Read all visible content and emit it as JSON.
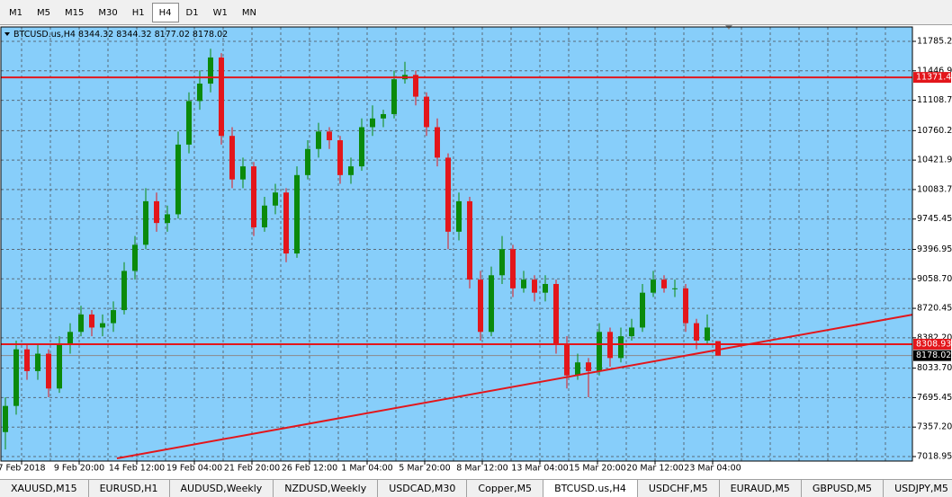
{
  "toolbar": {
    "timeframes": [
      "M1",
      "M5",
      "M15",
      "M30",
      "H1",
      "H4",
      "D1",
      "W1",
      "MN"
    ],
    "active": 5
  },
  "chart_data": {
    "type": "candlestick",
    "symbol": "BTCUSD.us,H4",
    "candles": [
      [
        7300,
        7700,
        7100,
        7600
      ],
      [
        7600,
        8350,
        7500,
        8250
      ],
      [
        8250,
        8300,
        7900,
        8000
      ],
      [
        8000,
        8300,
        7900,
        8200
      ],
      [
        8200,
        8250,
        7700,
        7800
      ],
      [
        7800,
        8400,
        7750,
        8300
      ],
      [
        8300,
        8550,
        8200,
        8450
      ],
      [
        8450,
        8750,
        8400,
        8650
      ],
      [
        8650,
        8700,
        8400,
        8500
      ],
      [
        8500,
        8650,
        8400,
        8550
      ],
      [
        8550,
        8800,
        8450,
        8700
      ],
      [
        8700,
        9250,
        8650,
        9150
      ],
      [
        9150,
        9550,
        9050,
        9450
      ],
      [
        9450,
        10100,
        9400,
        9950
      ],
      [
        9950,
        10050,
        9600,
        9700
      ],
      [
        9700,
        9900,
        9600,
        9800
      ],
      [
        9800,
        10750,
        9750,
        10600
      ],
      [
        10600,
        11200,
        10500,
        11100
      ],
      [
        11100,
        11450,
        11000,
        11300
      ],
      [
        11300,
        11700,
        11200,
        11600
      ],
      [
        11600,
        11650,
        10600,
        10700
      ],
      [
        10700,
        10800,
        10100,
        10200
      ],
      [
        10200,
        10450,
        10100,
        10350
      ],
      [
        10350,
        10400,
        9550,
        9650
      ],
      [
        9650,
        10000,
        9600,
        9900
      ],
      [
        9900,
        10150,
        9800,
        10050
      ],
      [
        10050,
        10100,
        9250,
        9350
      ],
      [
        9350,
        10350,
        9300,
        10250
      ],
      [
        10250,
        10650,
        10200,
        10550
      ],
      [
        10550,
        10850,
        10450,
        10750
      ],
      [
        10750,
        10800,
        10550,
        10650
      ],
      [
        10650,
        10700,
        10150,
        10250
      ],
      [
        10250,
        10450,
        10150,
        10350
      ],
      [
        10350,
        10900,
        10300,
        10800
      ],
      [
        10800,
        11050,
        10700,
        10900
      ],
      [
        10900,
        11000,
        10800,
        10950
      ],
      [
        10950,
        11450,
        10900,
        11350
      ],
      [
        11350,
        11550,
        11300,
        11400
      ],
      [
        11400,
        11450,
        11050,
        11150
      ],
      [
        11150,
        11200,
        10700,
        10800
      ],
      [
        10800,
        10900,
        10350,
        10450
      ],
      [
        10450,
        10500,
        9400,
        9600
      ],
      [
        9600,
        10050,
        9500,
        9950
      ],
      [
        9950,
        10000,
        8950,
        9050
      ],
      [
        9050,
        9150,
        8350,
        8450
      ],
      [
        8450,
        9200,
        8400,
        9100
      ],
      [
        9100,
        9550,
        9000,
        9400
      ],
      [
        9400,
        9450,
        8850,
        8950
      ],
      [
        8950,
        9150,
        8900,
        9050
      ],
      [
        9050,
        9100,
        8800,
        8900
      ],
      [
        8900,
        9100,
        8800,
        9000
      ],
      [
        9000,
        9050,
        8200,
        8300
      ],
      [
        8300,
        8400,
        7800,
        7950
      ],
      [
        7950,
        8200,
        7900,
        8100
      ],
      [
        8100,
        8150,
        7700,
        8000
      ],
      [
        8000,
        8550,
        7950,
        8450
      ],
      [
        8450,
        8500,
        8050,
        8150
      ],
      [
        8150,
        8500,
        8100,
        8400
      ],
      [
        8400,
        8600,
        8350,
        8500
      ],
      [
        8500,
        9000,
        8450,
        8900
      ],
      [
        8900,
        9150,
        8850,
        9050
      ],
      [
        9050,
        9100,
        8900,
        8950
      ],
      [
        8950,
        9050,
        8850,
        8950
      ],
      [
        8950,
        9000,
        8450,
        8550
      ],
      [
        8550,
        8600,
        8250,
        8350
      ],
      [
        8350,
        8650,
        8300,
        8500
      ],
      [
        8344.32,
        8344.32,
        8177.02,
        8178.02
      ]
    ],
    "bull_color": "#0b8a0b",
    "bear_color": "#e3161b",
    "background": "#87cefa",
    "ylim": [
      6967.4,
      11950.3
    ],
    "yticks": [
      {
        "value": 11785.2,
        "label": "11785.20"
      },
      {
        "value": 11446.95,
        "label": "11446.95"
      },
      {
        "value": 11108.7,
        "label": "11108.70"
      },
      {
        "value": 10760.2,
        "label": "10760.20"
      },
      {
        "value": 10421.95,
        "label": "10421.95"
      },
      {
        "value": 10083.7,
        "label": "10083.70"
      },
      {
        "value": 9745.45,
        "label": "9745.45"
      },
      {
        "value": 9396.95,
        "label": "9396.95"
      },
      {
        "value": 9058.7,
        "label": "9058.70"
      },
      {
        "value": 8720.45,
        "label": "8720.45"
      },
      {
        "value": 8382.2,
        "label": "8382.20"
      },
      {
        "value": 8033.7,
        "label": "8033.70"
      },
      {
        "value": 7695.45,
        "label": "7695.45"
      },
      {
        "value": 7357.2,
        "label": "7357.20"
      },
      {
        "value": 7018.95,
        "label": "7018.95"
      }
    ],
    "levels": [
      11371.44,
      8308.93
    ],
    "level_color": "#e3161b",
    "trendline": [
      [
        10.33,
        6998
      ],
      [
        84,
        8648
      ]
    ],
    "x_labels": [
      "7 Feb 2018",
      "9 Feb 20:00",
      "14 Feb 12:00",
      "19 Feb 04:00",
      "21 Feb 20:00",
      "26 Feb 12:00",
      "1 Mar 04:00",
      "5 Mar 20:00",
      "8 Mar 12:00",
      "13 Mar 04:00",
      "15 Mar 20:00",
      "20 Mar 12:00",
      "23 Mar 04:00"
    ],
    "grid": true
  },
  "tabs": {
    "items": [
      "XAUUSD,M15",
      "EURUSD,H1",
      "AUDUSD,Weekly",
      "NZDUSD,Weekly",
      "USDCAD,M30",
      "Copper,M5",
      "BTCUSD.us,H4",
      "USDCHF,M5",
      "EURAUD,M5",
      "GBPUSD,M5",
      "USDJPY,M5"
    ],
    "active": 6
  }
}
